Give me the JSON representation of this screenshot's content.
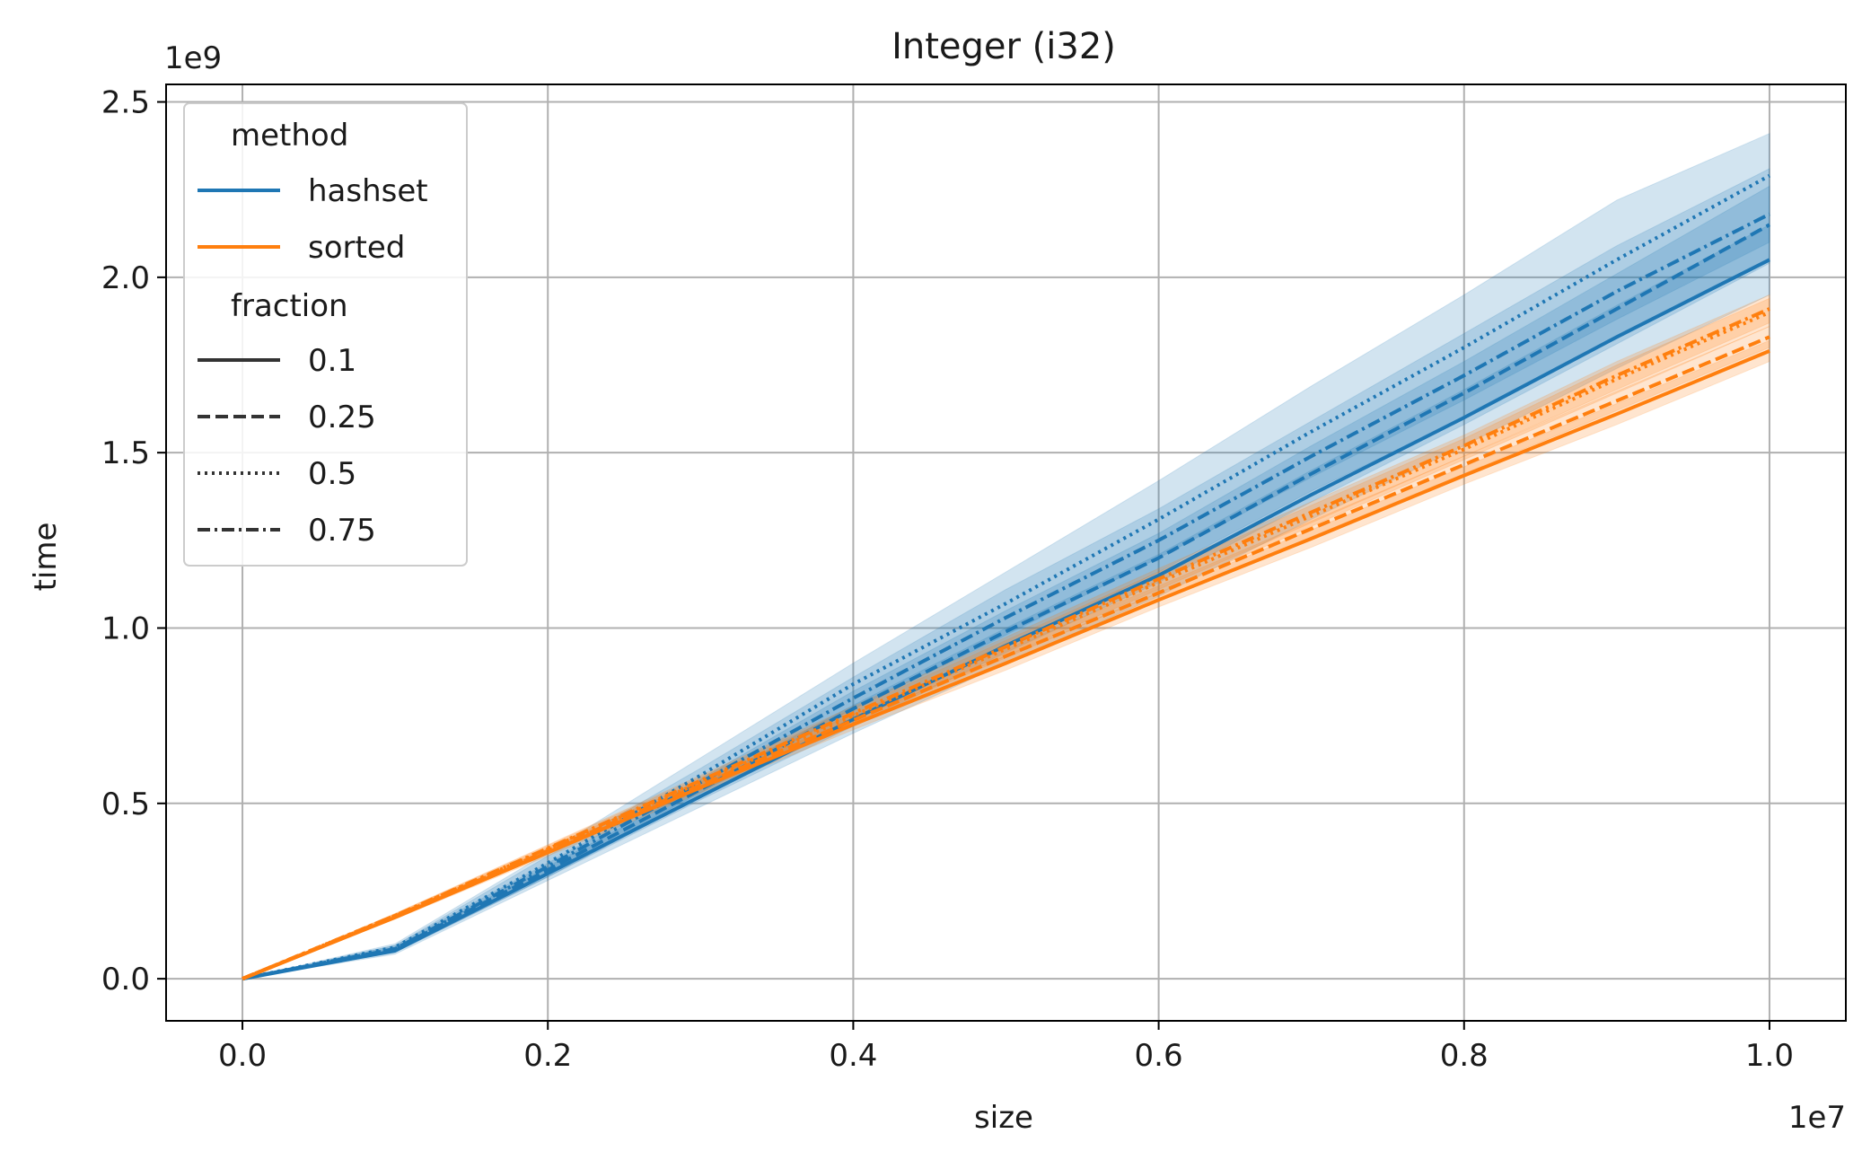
{
  "chart_data": {
    "type": "line",
    "title": "Integer (i32)",
    "xlabel": "size",
    "ylabel": "time",
    "x_offset_label": "1e7",
    "y_offset_label": "1e9",
    "xlim": [
      -0.05,
      1.05
    ],
    "ylim": [
      -0.12,
      2.55
    ],
    "x_ticks": [
      0.0,
      0.2,
      0.4,
      0.6,
      0.8,
      1.0
    ],
    "x_tick_labels": [
      "0.0",
      "0.2",
      "0.4",
      "0.6",
      "0.8",
      "1.0"
    ],
    "y_ticks": [
      0.0,
      0.5,
      1.0,
      1.5,
      2.0,
      2.5
    ],
    "y_tick_labels": [
      "0.0",
      "0.5",
      "1.0",
      "1.5",
      "2.0",
      "2.5"
    ],
    "grid": true,
    "legend_placement": "top-left",
    "legend": {
      "method_title": "method",
      "methods": [
        {
          "label": "hashset",
          "color": "#1f77b4"
        },
        {
          "label": "sorted",
          "color": "#ff7f0e"
        }
      ],
      "fraction_title": "fraction",
      "fractions": [
        {
          "label": "0.1",
          "style": "solid"
        },
        {
          "label": "0.25",
          "style": "dashed"
        },
        {
          "label": "0.5",
          "style": "dotted"
        },
        {
          "label": "0.75",
          "style": "dashdot"
        }
      ]
    },
    "x": [
      0.0,
      0.1,
      0.2,
      0.3,
      0.4,
      0.5,
      0.6,
      0.7,
      0.8,
      0.9,
      1.0
    ],
    "series": [
      {
        "method": "hashset",
        "fraction": "0.1",
        "style": "solid",
        "color": "#1f77b4",
        "values": [
          0.0,
          0.08,
          0.3,
          0.52,
          0.74,
          0.95,
          1.15,
          1.38,
          1.6,
          1.83,
          2.05
        ],
        "lower": [
          0.0,
          0.07,
          0.28,
          0.49,
          0.7,
          0.9,
          1.09,
          1.31,
          1.52,
          1.74,
          1.95
        ],
        "upper": [
          0.0,
          0.09,
          0.32,
          0.55,
          0.78,
          1.0,
          1.21,
          1.45,
          1.68,
          1.92,
          2.15
        ]
      },
      {
        "method": "hashset",
        "fraction": "0.25",
        "style": "dashed",
        "color": "#1f77b4",
        "values": [
          0.0,
          0.085,
          0.31,
          0.54,
          0.77,
          0.99,
          1.2,
          1.44,
          1.67,
          1.91,
          2.15
        ],
        "lower": [
          0.0,
          0.075,
          0.29,
          0.51,
          0.72,
          0.93,
          1.13,
          1.36,
          1.58,
          1.81,
          2.04
        ],
        "upper": [
          0.0,
          0.095,
          0.33,
          0.57,
          0.82,
          1.05,
          1.27,
          1.52,
          1.76,
          2.01,
          2.26
        ]
      },
      {
        "method": "hashset",
        "fraction": "0.5",
        "style": "dotted",
        "color": "#1f77b4",
        "values": [
          0.0,
          0.09,
          0.33,
          0.58,
          0.84,
          1.07,
          1.31,
          1.56,
          1.8,
          2.05,
          2.29
        ],
        "lower": [
          0.0,
          0.08,
          0.3,
          0.53,
          0.77,
          0.98,
          1.2,
          1.43,
          1.65,
          1.88,
          2.1
        ],
        "upper": [
          0.0,
          0.1,
          0.36,
          0.63,
          0.9,
          1.16,
          1.42,
          1.69,
          1.95,
          2.22,
          2.41
        ]
      },
      {
        "method": "hashset",
        "fraction": "0.75",
        "style": "dashdot",
        "color": "#1f77b4",
        "values": [
          0.0,
          0.085,
          0.32,
          0.56,
          0.8,
          1.03,
          1.25,
          1.49,
          1.72,
          1.96,
          2.18
        ],
        "lower": [
          0.0,
          0.075,
          0.29,
          0.52,
          0.74,
          0.95,
          1.16,
          1.39,
          1.6,
          1.83,
          2.05
        ],
        "upper": [
          0.0,
          0.095,
          0.35,
          0.6,
          0.86,
          1.11,
          1.34,
          1.59,
          1.84,
          2.09,
          2.31
        ]
      },
      {
        "method": "sorted",
        "fraction": "0.1",
        "style": "solid",
        "color": "#ff7f0e",
        "values": [
          0.0,
          0.175,
          0.36,
          0.545,
          0.725,
          0.9,
          1.08,
          1.255,
          1.435,
          1.61,
          1.79
        ],
        "lower": [
          0.0,
          0.17,
          0.35,
          0.53,
          0.71,
          0.88,
          1.06,
          1.23,
          1.41,
          1.58,
          1.76
        ],
        "upper": [
          0.0,
          0.18,
          0.37,
          0.56,
          0.74,
          0.92,
          1.1,
          1.28,
          1.46,
          1.64,
          1.82
        ]
      },
      {
        "method": "sorted",
        "fraction": "0.25",
        "style": "dashed",
        "color": "#ff7f0e",
        "values": [
          0.0,
          0.178,
          0.365,
          0.552,
          0.737,
          0.92,
          1.1,
          1.283,
          1.466,
          1.648,
          1.83
        ],
        "lower": [
          0.0,
          0.172,
          0.355,
          0.537,
          0.72,
          0.9,
          1.08,
          1.26,
          1.44,
          1.62,
          1.8
        ],
        "upper": [
          0.0,
          0.184,
          0.375,
          0.567,
          0.755,
          0.94,
          1.12,
          1.305,
          1.49,
          1.675,
          1.86
        ]
      },
      {
        "method": "sorted",
        "fraction": "0.5",
        "style": "dotted",
        "color": "#ff7f0e",
        "values": [
          0.0,
          0.18,
          0.37,
          0.56,
          0.75,
          0.94,
          1.13,
          1.32,
          1.51,
          1.71,
          1.9
        ],
        "lower": [
          0.0,
          0.174,
          0.36,
          0.545,
          0.73,
          0.915,
          1.1,
          1.29,
          1.48,
          1.67,
          1.86
        ],
        "upper": [
          0.0,
          0.186,
          0.38,
          0.575,
          0.77,
          0.965,
          1.16,
          1.35,
          1.54,
          1.75,
          1.94
        ]
      },
      {
        "method": "sorted",
        "fraction": "0.75",
        "style": "dashdot",
        "color": "#ff7f0e",
        "values": [
          0.0,
          0.18,
          0.372,
          0.565,
          0.757,
          0.947,
          1.14,
          1.33,
          1.52,
          1.72,
          1.91
        ],
        "lower": [
          0.0,
          0.174,
          0.362,
          0.55,
          0.737,
          0.92,
          1.11,
          1.3,
          1.49,
          1.68,
          1.87
        ],
        "upper": [
          0.0,
          0.186,
          0.382,
          0.58,
          0.777,
          0.974,
          1.17,
          1.36,
          1.55,
          1.76,
          1.95
        ]
      }
    ]
  }
}
